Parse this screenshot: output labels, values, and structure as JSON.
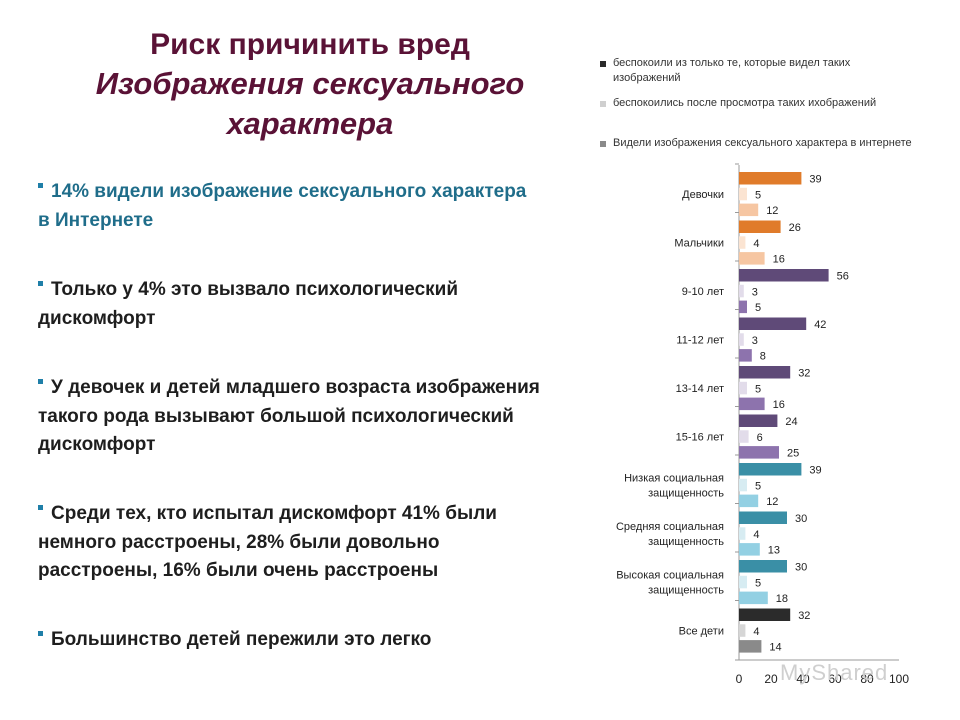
{
  "title": {
    "line1": "Риск причинить вред",
    "line2": "Изображения сексуального",
    "line3": "характера"
  },
  "bullets": [
    "14% видели изображение сексуального характера в Интернете",
    "Только у 4%  это вызвало психологический дискомфорт",
    "У девочек и детей младшего возраста изображения такого рода вызывают большой психологический дискомфорт",
    "Среди тех, кто испытал дискомфорт 41% были немного расстроены, 28% были довольно расстроены, 16% были очень расстроены",
    "Большинство детей пережили это легко"
  ],
  "watermark": "MyShared",
  "chart_data": {
    "type": "bar",
    "orientation": "horizontal",
    "legend": [
      {
        "label": "беспокоили из только те, которые видел таких изображений",
        "legend_color": "#2b2b2b"
      },
      {
        "label": "беспокоились после просмотра таких ихображений",
        "legend_color": "#cfcfcf"
      },
      {
        "label": "Видели изображения сексуального характера в интернете",
        "legend_color": "#8a8a8a"
      }
    ],
    "categories": [
      "Девочки",
      "Мальчики",
      "9-10 лет",
      "11-12 лет",
      "13-14 лет",
      "15-16 лет",
      "Низкая социальная защищенность",
      "Средняя социальная защищенность",
      "Высокая социальная защищенность",
      "Все дети"
    ],
    "series": [
      {
        "values": [
          39,
          26,
          56,
          42,
          32,
          24,
          39,
          30,
          30,
          32
        ]
      },
      {
        "values": [
          5,
          4,
          3,
          3,
          5,
          6,
          5,
          4,
          5,
          4
        ]
      },
      {
        "values": [
          12,
          16,
          5,
          8,
          16,
          25,
          12,
          13,
          18,
          14
        ]
      }
    ],
    "group_colors": [
      [
        "#e07b2a",
        "#fbe4d2",
        "#f6c6a2"
      ],
      [
        "#e07b2a",
        "#fbe4d2",
        "#f6c6a2"
      ],
      [
        "#5f4a78",
        "#e2dcea",
        "#8d73ad"
      ],
      [
        "#5f4a78",
        "#e2dcea",
        "#8d73ad"
      ],
      [
        "#5f4a78",
        "#e2dcea",
        "#8d73ad"
      ],
      [
        "#5f4a78",
        "#e2dcea",
        "#8d73ad"
      ],
      [
        "#3a8fa6",
        "#d7ecf2",
        "#93d0e3"
      ],
      [
        "#3a8fa6",
        "#d7ecf2",
        "#93d0e3"
      ],
      [
        "#3a8fa6",
        "#d7ecf2",
        "#93d0e3"
      ],
      [
        "#2b2b2b",
        "#d6d6d6",
        "#8a8a8a"
      ]
    ],
    "xticks": [
      0,
      20,
      40,
      60,
      80,
      100
    ],
    "xlim": [
      0,
      100
    ],
    "grid": false
  }
}
